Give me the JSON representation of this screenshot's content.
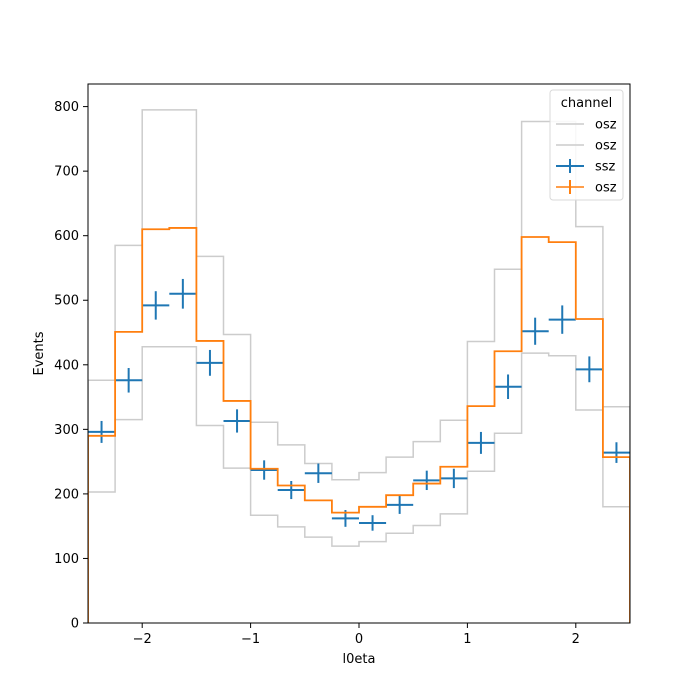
{
  "chart_data": {
    "type": "line",
    "xlabel": "l0eta",
    "ylabel": "Events",
    "xlim": [
      -2.5,
      2.5
    ],
    "ylim": [
      0,
      835
    ],
    "x_ticks": [
      -2,
      -1,
      0,
      1,
      2
    ],
    "x_tick_labels": [
      "−2",
      "−1",
      "0",
      "1",
      "2"
    ],
    "y_ticks": [
      0,
      100,
      200,
      300,
      400,
      500,
      600,
      700,
      800
    ],
    "bin_edges": [
      -2.5,
      -2.25,
      -2.0,
      -1.75,
      -1.5,
      -1.25,
      -1.0,
      -0.75,
      -0.5,
      -0.25,
      0.0,
      0.25,
      0.5,
      0.75,
      1.0,
      1.25,
      1.5,
      1.75,
      2.0,
      2.25,
      2.5
    ],
    "legend": {
      "title": "channel",
      "position": "top-right"
    },
    "series": [
      {
        "name": "osz",
        "style": "step",
        "color": "#cccccc",
        "values": [
          376,
          585,
          795,
          795,
          568,
          447,
          311,
          276,
          247,
          222,
          233,
          257,
          281,
          314,
          436,
          548,
          777,
          777,
          614,
          335
        ]
      },
      {
        "name": "osz",
        "style": "step",
        "color": "#cccccc",
        "values": [
          203,
          315,
          428,
          428,
          306,
          240,
          167,
          149,
          133,
          119,
          126,
          139,
          151,
          169,
          235,
          294,
          418,
          414,
          330,
          180
        ]
      },
      {
        "name": "ssz",
        "style": "errorbar",
        "color": "#1f77b4",
        "values": [
          296,
          376,
          492,
          510,
          403,
          313,
          237,
          206,
          232,
          162,
          155,
          183,
          221,
          224,
          279,
          366,
          452,
          470,
          393,
          264
        ],
        "errors": [
          17,
          19,
          22,
          23,
          20,
          18,
          15,
          14,
          15,
          13,
          12,
          14,
          15,
          15,
          17,
          19,
          21,
          22,
          20,
          16
        ]
      },
      {
        "name": "osz",
        "style": "step",
        "color": "#ff7f0e",
        "values": [
          290,
          451,
          610,
          612,
          437,
          344,
          239,
          213,
          190,
          171,
          180,
          198,
          216,
          242,
          336,
          421,
          598,
          590,
          471,
          257
        ]
      }
    ]
  }
}
